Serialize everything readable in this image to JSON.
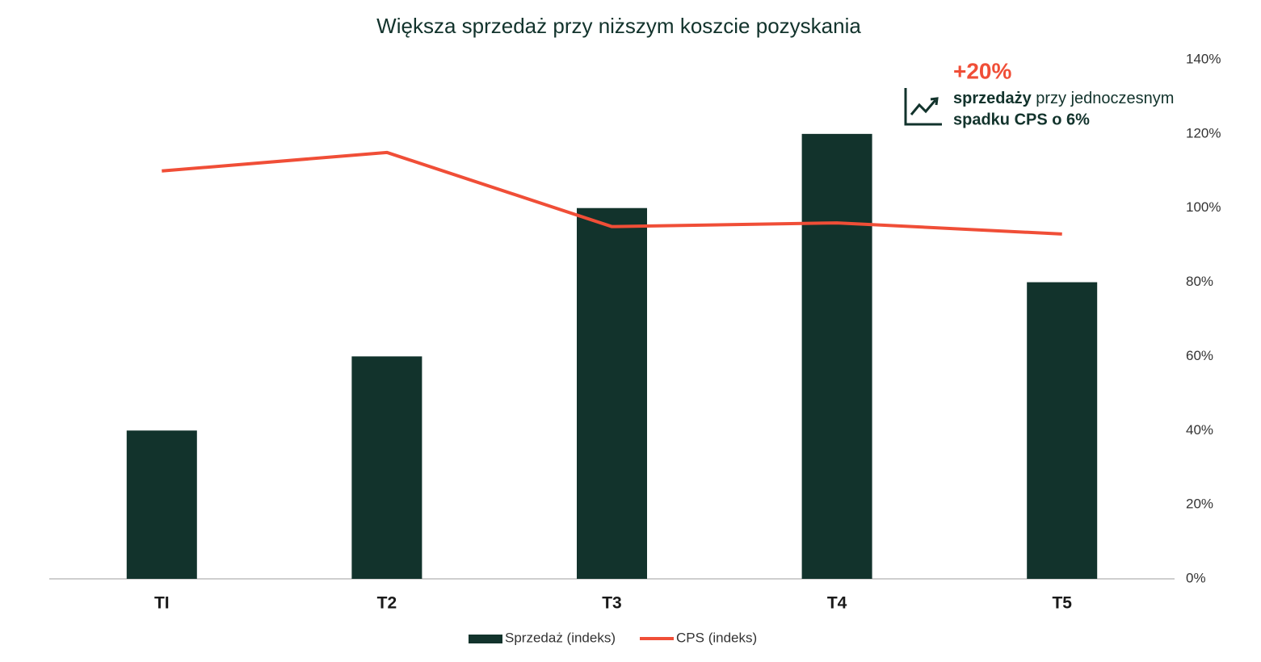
{
  "chart_data": {
    "type": "bar_line",
    "title": "Większa sprzedaż przy niższym koszcie pozyskania",
    "categories": [
      "TI",
      "T2",
      "T3",
      "T4",
      "T5"
    ],
    "series": [
      {
        "name": "Sprzedaż (indeks)",
        "type": "bar",
        "color": "#12332c",
        "values": [
          40,
          60,
          100,
          120,
          80
        ]
      },
      {
        "name": "CPS (indeks)",
        "type": "line",
        "color": "#f04e37",
        "values": [
          110,
          115,
          95,
          96,
          93
        ]
      }
    ],
    "ylim": [
      0,
      140
    ],
    "yticks": [
      {
        "value": 0,
        "label": "0%"
      },
      {
        "value": 20,
        "label": "20%"
      },
      {
        "value": 40,
        "label": "40%"
      },
      {
        "value": 60,
        "label": "60%"
      },
      {
        "value": 80,
        "label": "80%"
      },
      {
        "value": 100,
        "label": "100%"
      },
      {
        "value": 120,
        "label": "120%"
      },
      {
        "value": 140,
        "label": "140%"
      }
    ],
    "y_axis_side": "right",
    "annotation": {
      "headline": "+20%",
      "line1_bold": "sprzedaży",
      "line1_rest": " przy jednoczesnym",
      "line2_bold": "spadku CPS o 6%"
    }
  }
}
